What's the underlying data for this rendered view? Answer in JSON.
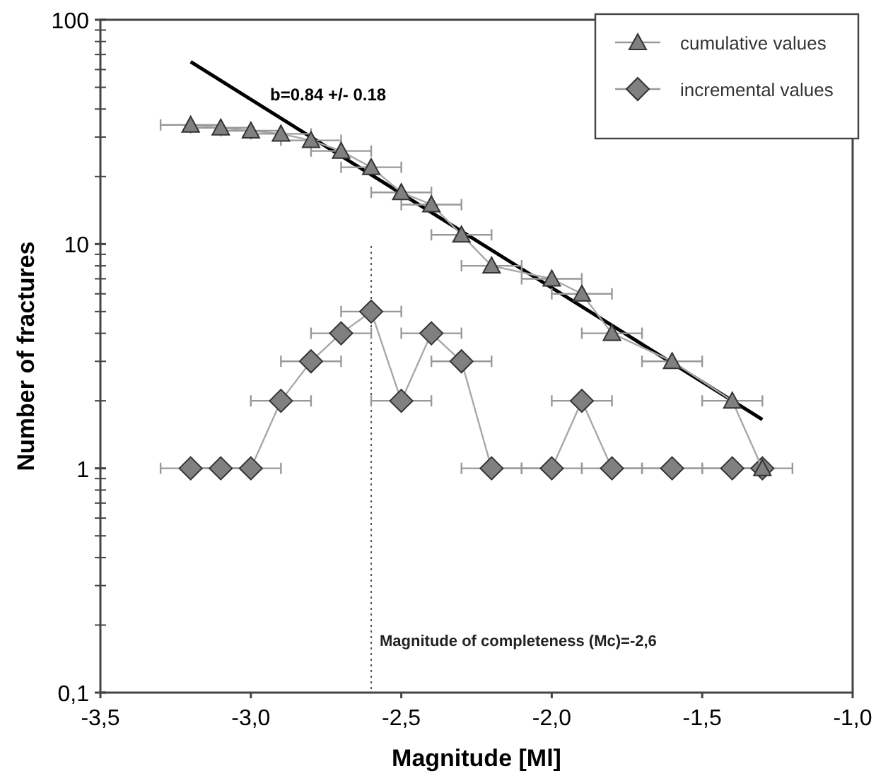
{
  "chart_data": {
    "type": "line",
    "xlabel": "Magnitude [Ml]",
    "ylabel": "Number of fractures",
    "log": "y",
    "grid": false,
    "legend": "top right",
    "xlim": [
      -3.5,
      -1.0
    ],
    "xticks": [
      {
        "value": -3.5,
        "label": "-3,5"
      },
      {
        "value": -3.0,
        "label": "-3,0"
      },
      {
        "value": -2.5,
        "label": "-2,5"
      },
      {
        "value": -2.0,
        "label": "-2,0"
      },
      {
        "value": -1.5,
        "label": "-1,5"
      },
      {
        "value": -1.0,
        "label": "-1,0"
      }
    ],
    "ylim": [
      0.1,
      100
    ],
    "yticks": [
      {
        "value": 0.1,
        "label": "0,1"
      },
      {
        "value": 0.2,
        "label": null
      },
      {
        "value": 0.3,
        "label": null
      },
      {
        "value": 0.4,
        "label": null
      },
      {
        "value": 0.5,
        "label": null
      },
      {
        "value": 0.6,
        "label": null
      },
      {
        "value": 0.7,
        "label": null
      },
      {
        "value": 0.8,
        "label": null
      },
      {
        "value": 0.9,
        "label": null
      },
      1,
      {
        "value": 2,
        "label": null
      },
      {
        "value": 3,
        "label": null
      },
      {
        "value": 4,
        "label": null
      },
      {
        "value": 5,
        "label": null
      },
      {
        "value": 6,
        "label": null
      },
      {
        "value": 7,
        "label": null
      },
      {
        "value": 8,
        "label": null
      },
      {
        "value": 9,
        "label": null
      },
      10,
      {
        "value": 20,
        "label": null
      },
      {
        "value": 30,
        "label": null
      },
      {
        "value": 40,
        "label": null
      },
      {
        "value": 50,
        "label": null
      },
      {
        "value": 60,
        "label": null
      },
      {
        "value": 70,
        "label": null
      },
      {
        "value": 80,
        "label": null
      },
      {
        "value": 90,
        "label": null
      },
      100
    ],
    "series": [
      {
        "name": "cumulative values",
        "marker": "triangle",
        "color": "#808080",
        "x": [
          -3.2,
          -3.1,
          -3.0,
          -2.9,
          -2.8,
          -2.7,
          -2.6,
          -2.5,
          -2.4,
          -2.3,
          -2.2,
          -2.0,
          -1.9,
          -1.8,
          -1.6,
          -1.4,
          -1.3
        ],
        "values": [
          34,
          33,
          32,
          31,
          29,
          26,
          22,
          17,
          15,
          11,
          8,
          7,
          6,
          4,
          3,
          2,
          1
        ],
        "xerrors": [
          0.1,
          0.1,
          0.1,
          0.1,
          0.1,
          0.1,
          0.1,
          0.1,
          0.1,
          0.1,
          0.1,
          0.1,
          0.1,
          0.1,
          0.1,
          0.1,
          null
        ]
      },
      {
        "name": "incremental values",
        "marker": "diamond",
        "color": "#808080",
        "x": [
          -3.2,
          -3.1,
          -3.0,
          -2.9,
          -2.8,
          -2.7,
          -2.6,
          -2.5,
          -2.4,
          -2.3,
          -2.2,
          -2.0,
          -1.9,
          -1.8,
          -1.6,
          -1.4,
          -1.3
        ],
        "values": [
          1,
          1,
          1,
          2,
          3,
          4,
          5,
          2,
          4,
          3,
          1,
          1,
          2,
          1,
          1,
          1,
          1
        ],
        "xerrors": [
          0.1,
          0.1,
          0.1,
          0.1,
          0.1,
          0.1,
          0.1,
          0.1,
          0.1,
          0.1,
          0.1,
          0.1,
          0.1,
          0.1,
          0.1,
          0.1,
          0.1
        ]
      },
      {
        "marker": "none",
        "color": "#000000",
        "x": [
          -3.2,
          -1.3
        ],
        "values": [
          65,
          1.65
        ]
      }
    ],
    "ref_lines": [
      {
        "axis": "x",
        "value": -2.6,
        "label": "Magnitude of completeness (Mc)=-2,6",
        "line_style": "dotted"
      }
    ],
    "annotations": [
      "b=0.84 +/- 0.18"
    ]
  }
}
